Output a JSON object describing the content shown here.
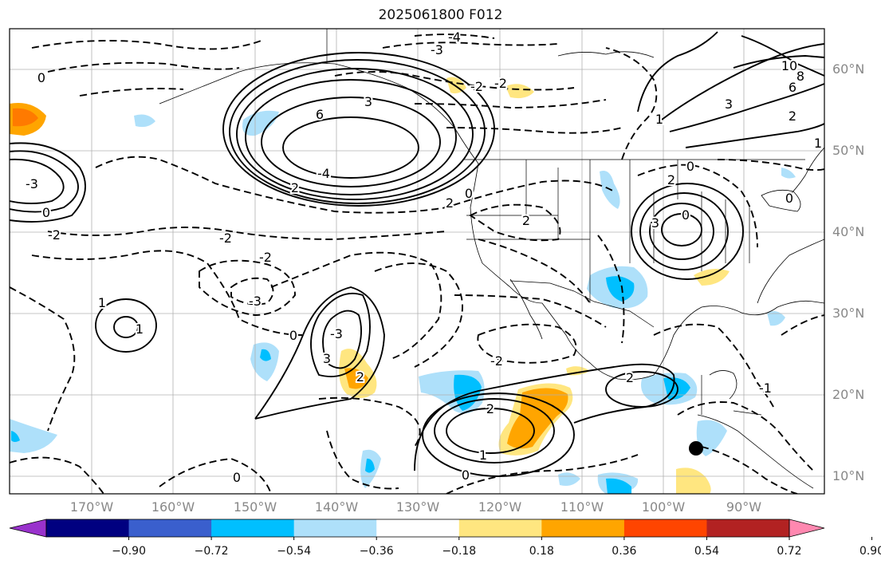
{
  "title": "2025061800 F012",
  "map": {
    "lon_labels": [
      "170°W",
      "160°W",
      "150°W",
      "140°W",
      "130°W",
      "120°W",
      "110°W",
      "100°W",
      "90°W"
    ],
    "lat_labels": [
      "60°N",
      "50°N",
      "40°N",
      "30°N",
      "20°N",
      "10°N"
    ],
    "contour_labels": [
      "-4",
      "-3",
      "0",
      "-2",
      "-2",
      "3",
      "6",
      "-4",
      "2",
      "-2",
      "-2",
      "2",
      "-3",
      "0",
      "-3",
      "3",
      "2",
      "0",
      "2",
      "-2",
      "1",
      "2",
      "0",
      "10",
      "8",
      "6",
      "3",
      "2",
      "1",
      "0",
      "3",
      "2",
      "0",
      "0",
      "2",
      "1",
      "1",
      "1",
      "0",
      "-1",
      "0",
      "-3",
      "-2"
    ],
    "colors": {
      "positive_contour": "#000000",
      "negative_contour": "#000000",
      "coast": "#000000",
      "grid": "#b0b0b0",
      "marker": "#000000"
    }
  },
  "colorbar": {
    "ticks": [
      "−0.90",
      "−0.72",
      "−0.54",
      "−0.36",
      "−0.18",
      "0.18",
      "0.36",
      "0.54",
      "0.72",
      "0.90"
    ],
    "colors": [
      "#9932cc",
      "#000080",
      "#3a5fcd",
      "#00bfff",
      "#aee0fa",
      "#ffffff",
      "#ffe680",
      "#ffa500",
      "#ff4500",
      "#b22222",
      "#ff88b0"
    ],
    "extend": "both"
  }
}
